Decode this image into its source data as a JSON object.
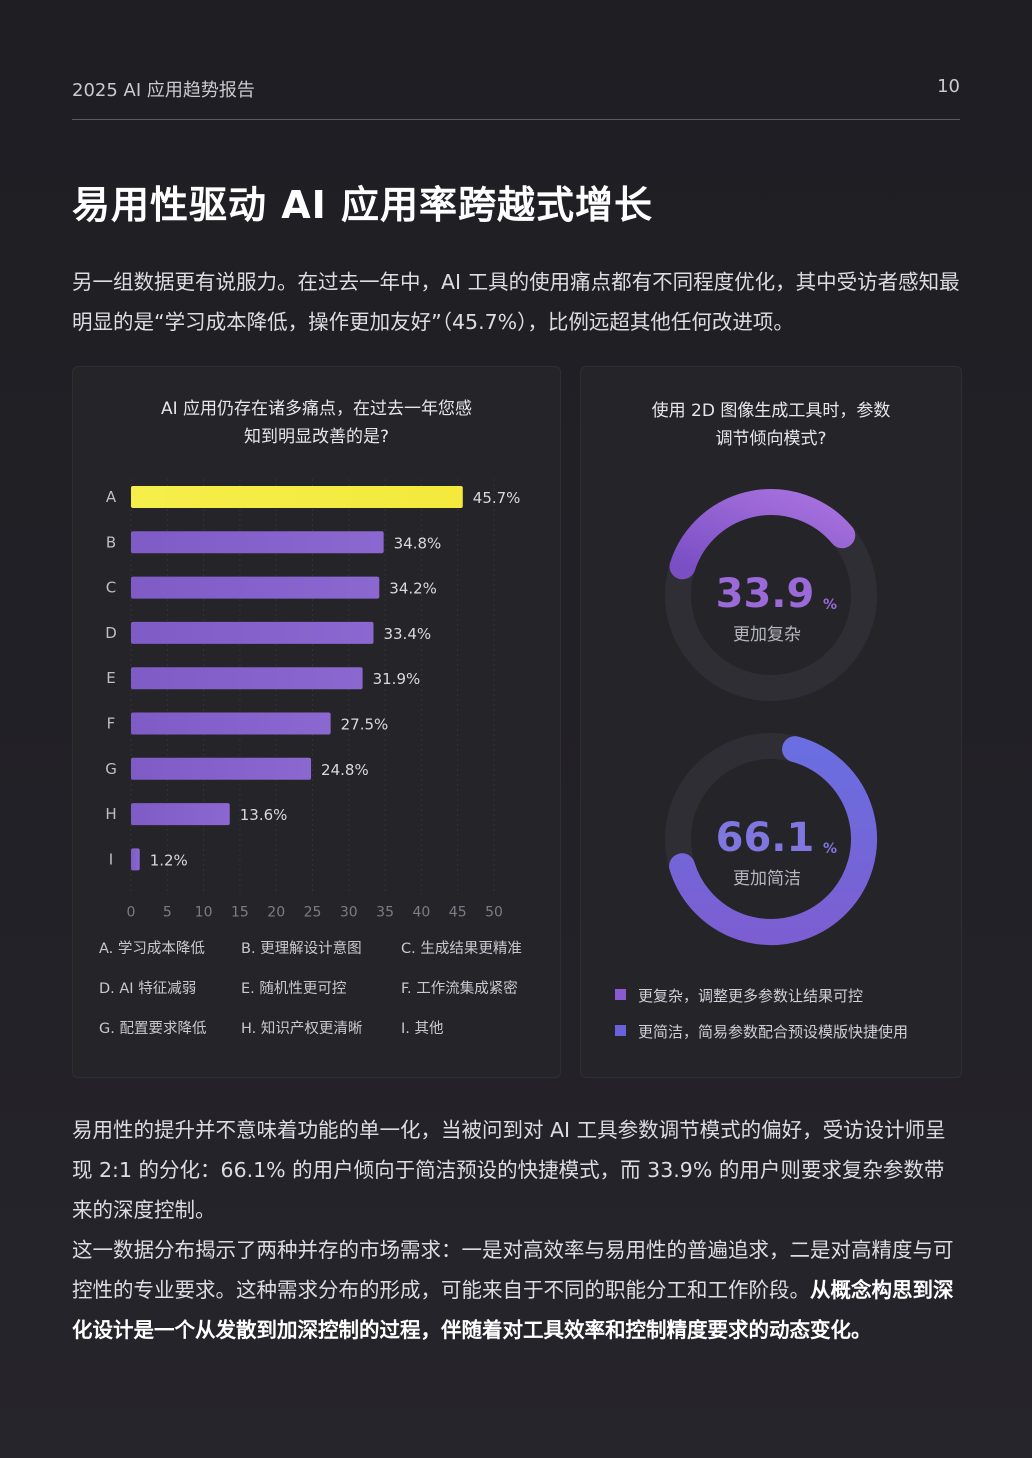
{
  "header": {
    "doc_title": "2025 AI 应用趋势报告",
    "page_number": "10"
  },
  "title": "易用性驱动 AI 应用率跨越式增长",
  "intro": "另一组数据更有说服力。在过去一年中，AI 工具的使用痛点都有不同程度优化，其中受访者感知最明显的是“学习成本降低，操作更加友好”（45.7%），比例远超其他任何改进项。",
  "colors": {
    "highlight": "#f3ea3c",
    "bar": "#8b68d0",
    "donut_complex": "#8a5ad0",
    "donut_simple": "#6a62d8",
    "track": "#2f2e34"
  },
  "chart_data": [
    {
      "type": "bar",
      "title_line1": "AI 应用仍存在诸多痛点，在过去一年您感",
      "title_line2": "知到明显改善的是?",
      "categories": [
        "A",
        "B",
        "C",
        "D",
        "E",
        "F",
        "G",
        "H",
        "I"
      ],
      "values": [
        45.7,
        34.8,
        34.2,
        33.4,
        31.9,
        27.5,
        24.8,
        13.6,
        1.2
      ],
      "value_labels": [
        "45.7%",
        "34.8%",
        "34.2%",
        "33.4%",
        "31.9%",
        "27.5%",
        "24.8%",
        "13.6%",
        "1.2%"
      ],
      "xlim": [
        0,
        50
      ],
      "xticks": [
        "0",
        "5",
        "10",
        "15",
        "20",
        "25",
        "30",
        "35",
        "40",
        "45",
        "50"
      ],
      "highlight_index": 0,
      "legend": [
        "A. 学习成本降低",
        "B. 更理解设计意图",
        "C. 生成结果更精准",
        "D.  AI 特征减弱",
        "E. 随机性更可控",
        "F. 工作流集成紧密",
        "G. 配置要求降低",
        "H. 知识产权更清晰",
        "I. 其他"
      ]
    },
    {
      "type": "pie",
      "title_line1": "使用 2D 图像生成工具时，参数",
      "title_line2": "调节倾向模式?",
      "slices": [
        {
          "value": 33.9,
          "value_text": "33.9",
          "unit": "%",
          "label": "更加复杂",
          "legend": "更复杂，调整更多参数让结果可控"
        },
        {
          "value": 66.1,
          "value_text": "66.1",
          "unit": "%",
          "label": "更加简洁",
          "legend": "更简洁，简易参数配合预设模版快捷使用"
        }
      ]
    }
  ],
  "body": {
    "p1": "易用性的提升并不意味着功能的单一化，当被问到对 AI 工具参数调节模式的偏好，受访设计师呈现 2:1 的分化：66.1% 的用户倾向于简洁预设的快捷模式，而 33.9% 的用户则要求复杂参数带来的深度控制。",
    "p2_normal": "这一数据分布揭示了两种并存的市场需求：一是对高效率与易用性的普遍追求，二是对高精度与可控性的专业要求。这种需求分布的形成，可能来自于不同的职能分工和工作阶段。",
    "p2_bold": "从概念构思到深化设计是一个从发散到加深控制的过程，伴随着对工具效率和控制精度要求的动态变化。"
  }
}
